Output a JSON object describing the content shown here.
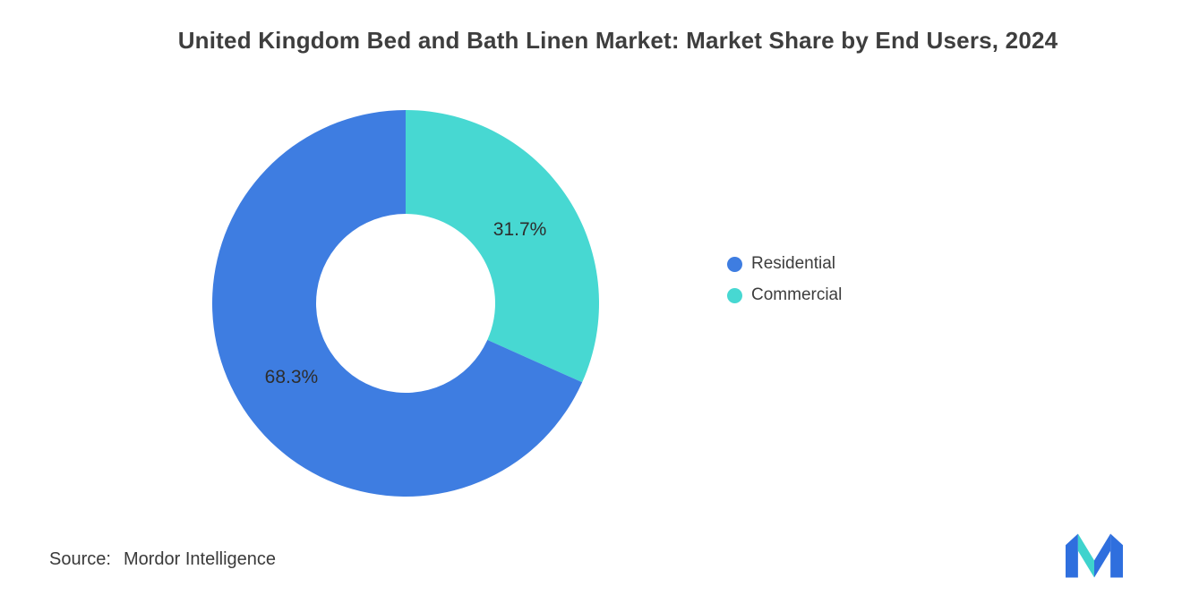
{
  "chart_data": {
    "type": "pie",
    "subtype": "donut",
    "title": "United Kingdom Bed and Bath Linen Market: Market Share by End Users, 2024",
    "categories": [
      "Residential",
      "Commercial"
    ],
    "values": [
      68.3,
      31.7
    ],
    "labels": [
      "68.3%",
      "31.7%"
    ],
    "colors": [
      "#3E7DE1",
      "#47D8D2"
    ],
    "units": "percent",
    "legend_position": "right",
    "start_position": "top",
    "direction": "clockwise"
  },
  "legend": {
    "items": [
      {
        "label": "Residential",
        "color": "#3E7DE1"
      },
      {
        "label": "Commercial",
        "color": "#47D8D2"
      }
    ]
  },
  "source": {
    "label": "Source:",
    "value": "Mordor Intelligence"
  },
  "logo": {
    "name": "mordor-intelligence-logo",
    "blue": "#2F6FDE",
    "teal": "#3ED3CD"
  }
}
